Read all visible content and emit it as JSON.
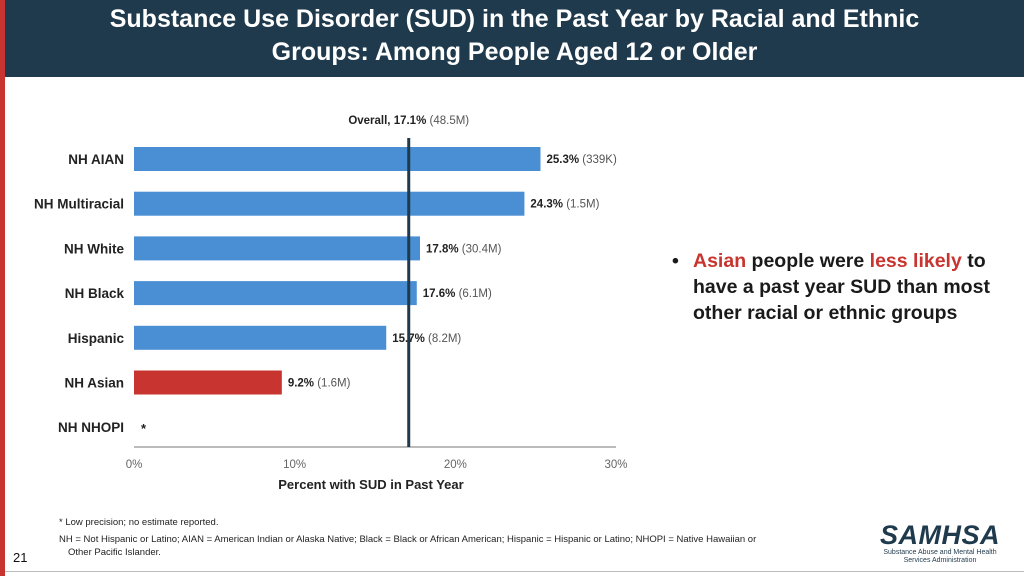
{
  "header": {
    "title_line1": "Substance Use Disorder (SUD) in the Past Year by Racial and Ethnic",
    "title_line2": "Groups: Among People Aged 12 or Older"
  },
  "chart_data": {
    "type": "bar",
    "orientation": "horizontal",
    "xlabel": "Percent with SUD in Past Year",
    "xlim": [
      0,
      30
    ],
    "xticks": [
      "0%",
      "10%",
      "20%",
      "30%"
    ],
    "reference_line": {
      "value": 17.1,
      "label": "Overall, 17.1%",
      "sub": "(48.5M)"
    },
    "categories": [
      "NH AIAN",
      "NH Multiracial",
      "NH White",
      "NH Black",
      "Hispanic",
      "NH Asian",
      "NH NHOPI"
    ],
    "values": [
      25.3,
      24.3,
      17.8,
      17.6,
      15.7,
      9.2,
      null
    ],
    "value_labels": [
      "25.3%",
      "24.3%",
      "17.8%",
      "17.6%",
      "15.7%",
      "9.2%",
      "*"
    ],
    "count_labels": [
      "(339K)",
      "(1.5M)",
      "(30.4M)",
      "(6.1M)",
      "(8.2M)",
      "(1.6M)",
      ""
    ],
    "colors": {
      "bar": "#4a8fd4",
      "highlight": "#c8342f",
      "highlight_index": 5,
      "reference": "#1f3a4d"
    }
  },
  "bullet": {
    "part1": "Asian",
    "part2": " people were ",
    "part3": "less likely",
    "part4": " to have a past year SUD than most other racial or ethnic groups"
  },
  "notes": {
    "line1": "* Low precision; no estimate reported.",
    "line2a": "NH = Not Hispanic or Latino; AIAN = American Indian or Alaska Native; Black = Black or African American; Hispanic = Hispanic or Latino; NHOPI = Native Hawaiian or",
    "line2b": "Other Pacific Islander."
  },
  "page_number": "21",
  "logo": {
    "word": "SAMHSA",
    "sub1": "Substance Abuse and Mental Health",
    "sub2": "Services Administration"
  }
}
